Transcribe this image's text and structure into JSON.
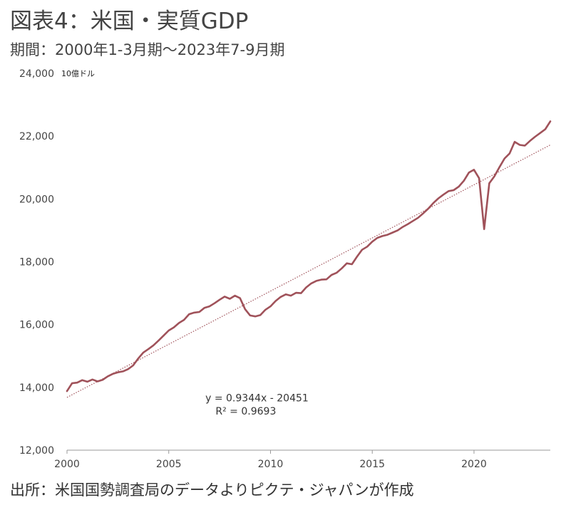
{
  "title": "図表4：米国・実質GDP",
  "subtitle": "期間：2000年1-3月期～2023年7-9月期",
  "source": "出所：米国国勢調査局のデータよりピクテ・ジャパンが作成",
  "colors": {
    "series": "#A0525A",
    "trendline": "#A0525A",
    "axis": "#999999"
  },
  "chart_data": {
    "type": "line",
    "unit_label": "10億ドル",
    "ylim": [
      12000,
      24000
    ],
    "xlim": [
      2000,
      2023.75
    ],
    "y_ticks": [
      {
        "value": 12000,
        "label": "12,000"
      },
      {
        "value": 14000,
        "label": "14,000"
      },
      {
        "value": 16000,
        "label": "16,000"
      },
      {
        "value": 18000,
        "label": "18,000"
      },
      {
        "value": 20000,
        "label": "20,000"
      },
      {
        "value": 22000,
        "label": "22,000"
      },
      {
        "value": 24000,
        "label": "24,000"
      }
    ],
    "x_ticks": [
      {
        "value": 2000,
        "label": "2000"
      },
      {
        "value": 2005,
        "label": "2005"
      },
      {
        "value": 2010,
        "label": "2010"
      },
      {
        "value": 2015,
        "label": "2015"
      },
      {
        "value": 2020,
        "label": "2020"
      }
    ],
    "grid": false,
    "series": [
      {
        "values": [
          {
            "x": 2000.0,
            "y": 13880
          },
          {
            "x": 2000.25,
            "y": 14130
          },
          {
            "x": 2000.5,
            "y": 14150
          },
          {
            "x": 2000.75,
            "y": 14230
          },
          {
            "x": 2001.0,
            "y": 14180
          },
          {
            "x": 2001.25,
            "y": 14250
          },
          {
            "x": 2001.5,
            "y": 14190
          },
          {
            "x": 2001.75,
            "y": 14240
          },
          {
            "x": 2002.0,
            "y": 14350
          },
          {
            "x": 2002.25,
            "y": 14430
          },
          {
            "x": 2002.5,
            "y": 14480
          },
          {
            "x": 2002.75,
            "y": 14510
          },
          {
            "x": 2003.0,
            "y": 14580
          },
          {
            "x": 2003.25,
            "y": 14700
          },
          {
            "x": 2003.5,
            "y": 14920
          },
          {
            "x": 2003.75,
            "y": 15110
          },
          {
            "x": 2004.0,
            "y": 15220
          },
          {
            "x": 2004.25,
            "y": 15340
          },
          {
            "x": 2004.5,
            "y": 15490
          },
          {
            "x": 2004.75,
            "y": 15650
          },
          {
            "x": 2005.0,
            "y": 15810
          },
          {
            "x": 2005.25,
            "y": 15910
          },
          {
            "x": 2005.5,
            "y": 16050
          },
          {
            "x": 2005.75,
            "y": 16150
          },
          {
            "x": 2006.0,
            "y": 16330
          },
          {
            "x": 2006.25,
            "y": 16380
          },
          {
            "x": 2006.5,
            "y": 16400
          },
          {
            "x": 2006.75,
            "y": 16530
          },
          {
            "x": 2007.0,
            "y": 16580
          },
          {
            "x": 2007.25,
            "y": 16680
          },
          {
            "x": 2007.5,
            "y": 16790
          },
          {
            "x": 2007.75,
            "y": 16890
          },
          {
            "x": 2008.0,
            "y": 16820
          },
          {
            "x": 2008.25,
            "y": 16920
          },
          {
            "x": 2008.5,
            "y": 16840
          },
          {
            "x": 2008.75,
            "y": 16490
          },
          {
            "x": 2009.0,
            "y": 16290
          },
          {
            "x": 2009.25,
            "y": 16260
          },
          {
            "x": 2009.5,
            "y": 16300
          },
          {
            "x": 2009.75,
            "y": 16470
          },
          {
            "x": 2010.0,
            "y": 16580
          },
          {
            "x": 2010.25,
            "y": 16750
          },
          {
            "x": 2010.5,
            "y": 16880
          },
          {
            "x": 2010.75,
            "y": 16960
          },
          {
            "x": 2011.0,
            "y": 16920
          },
          {
            "x": 2011.25,
            "y": 17010
          },
          {
            "x": 2011.5,
            "y": 17000
          },
          {
            "x": 2011.75,
            "y": 17180
          },
          {
            "x": 2012.0,
            "y": 17310
          },
          {
            "x": 2012.25,
            "y": 17390
          },
          {
            "x": 2012.5,
            "y": 17430
          },
          {
            "x": 2012.75,
            "y": 17440
          },
          {
            "x": 2013.0,
            "y": 17580
          },
          {
            "x": 2013.25,
            "y": 17650
          },
          {
            "x": 2013.5,
            "y": 17790
          },
          {
            "x": 2013.75,
            "y": 17950
          },
          {
            "x": 2014.0,
            "y": 17920
          },
          {
            "x": 2014.25,
            "y": 18160
          },
          {
            "x": 2014.5,
            "y": 18380
          },
          {
            "x": 2014.75,
            "y": 18480
          },
          {
            "x": 2015.0,
            "y": 18640
          },
          {
            "x": 2015.25,
            "y": 18760
          },
          {
            "x": 2015.5,
            "y": 18820
          },
          {
            "x": 2015.75,
            "y": 18860
          },
          {
            "x": 2016.0,
            "y": 18930
          },
          {
            "x": 2016.25,
            "y": 19000
          },
          {
            "x": 2016.5,
            "y": 19110
          },
          {
            "x": 2016.75,
            "y": 19200
          },
          {
            "x": 2017.0,
            "y": 19300
          },
          {
            "x": 2017.25,
            "y": 19400
          },
          {
            "x": 2017.5,
            "y": 19540
          },
          {
            "x": 2017.75,
            "y": 19690
          },
          {
            "x": 2018.0,
            "y": 19870
          },
          {
            "x": 2018.25,
            "y": 20020
          },
          {
            "x": 2018.5,
            "y": 20140
          },
          {
            "x": 2018.75,
            "y": 20250
          },
          {
            "x": 2019.0,
            "y": 20280
          },
          {
            "x": 2019.25,
            "y": 20390
          },
          {
            "x": 2019.5,
            "y": 20580
          },
          {
            "x": 2019.75,
            "y": 20840
          },
          {
            "x": 2020.0,
            "y": 20930
          },
          {
            "x": 2020.25,
            "y": 20660
          },
          {
            "x": 2020.5,
            "y": 19040
          },
          {
            "x": 2020.75,
            "y": 20500
          },
          {
            "x": 2021.0,
            "y": 20720
          },
          {
            "x": 2021.25,
            "y": 21010
          },
          {
            "x": 2021.5,
            "y": 21290
          },
          {
            "x": 2021.75,
            "y": 21450
          },
          {
            "x": 2022.0,
            "y": 21820
          },
          {
            "x": 2022.25,
            "y": 21720
          },
          {
            "x": 2022.5,
            "y": 21700
          },
          {
            "x": 2022.75,
            "y": 21850
          },
          {
            "x": 2023.0,
            "y": 21980
          },
          {
            "x": 2023.25,
            "y": 22100
          },
          {
            "x": 2023.5,
            "y": 22220
          },
          {
            "x": 2023.75,
            "y": 22470
          }
        ]
      }
    ],
    "trendline": {
      "style": "dotted",
      "from": {
        "x": 2000.0,
        "y": 13680
      },
      "to": {
        "x": 2023.75,
        "y": 21720
      }
    },
    "annotations": [
      {
        "text": "y = 0.9344x - 20451",
        "x": 2006.8,
        "y": 13550
      },
      {
        "text": "R² = 0.9693",
        "x": 2007.3,
        "y": 13130
      }
    ]
  }
}
